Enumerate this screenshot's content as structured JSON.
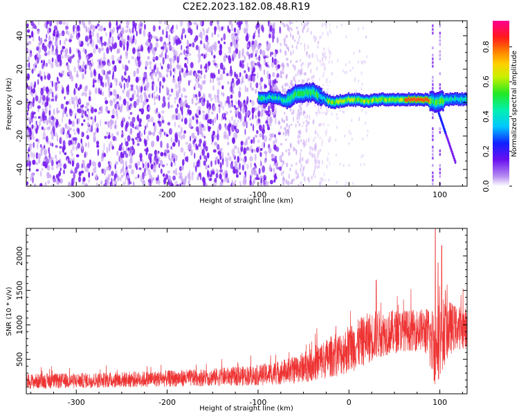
{
  "title": "C2E2.2023.182.08.48.R19",
  "colors": {
    "snr_line": "#ee3333",
    "spectrogram_noise": "#7a22ee",
    "axis": "#000000",
    "background": "#ffffff"
  },
  "chart_data": [
    {
      "type": "heatmap",
      "xlabel": "Height of straight line (km)",
      "ylabel": "Frequency (Hz)",
      "xlim": [
        -355,
        130
      ],
      "ylim": [
        -50,
        49
      ],
      "xticks": [
        "-300",
        "-200",
        "-100",
        "0",
        "100"
      ],
      "xtick_values": [
        -300,
        -200,
        -100,
        0,
        100
      ],
      "yticks": [
        "-40",
        "-20",
        "0",
        "20",
        "40"
      ],
      "ytick_values": [
        -40,
        -20,
        0,
        20,
        40
      ],
      "colorbar": {
        "label": "Normalized spectral amplitude",
        "range": [
          0,
          0.95
        ],
        "ticks": [
          "0.0",
          "0.2",
          "0.4",
          "0.6",
          "0.8"
        ],
        "tick_values": [
          0,
          0.2,
          0.4,
          0.6,
          0.8
        ],
        "colormap": "rainbow (white/violet at 0 through blue, cyan, green, yellow, orange, red to magenta at max)"
      },
      "noise_region": {
        "x_range": [
          -355,
          -75
        ],
        "amplitude": 0.12
      },
      "fading_noise_region": {
        "x_range": [
          -75,
          -20
        ]
      },
      "signal_band_center": [
        [
          -100,
          3
        ],
        [
          -80,
          3
        ],
        [
          -70,
          1
        ],
        [
          -60,
          5
        ],
        [
          -50,
          6
        ],
        [
          -40,
          6
        ],
        [
          -30,
          3
        ],
        [
          -20,
          0
        ],
        [
          -10,
          1
        ],
        [
          0,
          2
        ],
        [
          20,
          1
        ],
        [
          40,
          2
        ],
        [
          60,
          2
        ],
        [
          80,
          2
        ],
        [
          90,
          1
        ],
        [
          95,
          0
        ],
        [
          100,
          1
        ],
        [
          110,
          2
        ],
        [
          130,
          2
        ]
      ],
      "signal_peak_amplitude": 0.85,
      "signal_peak_x_range": [
        60,
        90
      ],
      "vertical_streaks_x": [
        92,
        100
      ],
      "diagonal_trail": [
        [
          95,
          0
        ],
        [
          118,
          -37
        ]
      ]
    },
    {
      "type": "line",
      "xlabel": "Height of straight line (km)",
      "ylabel": "SNR (10 * v/v)",
      "xlim": [
        -355,
        130
      ],
      "ylim": [
        0,
        2400
      ],
      "xticks": [
        "-300",
        "-200",
        "-100",
        "0",
        "100"
      ],
      "xtick_values": [
        -300,
        -200,
        -100,
        0,
        100
      ],
      "yticks": [
        "500",
        "1000",
        "1500",
        "2000"
      ],
      "ytick_values": [
        500,
        1000,
        1500,
        2000
      ],
      "series": [
        {
          "envelope_x": [
            -355,
            -300,
            -200,
            -150,
            -100,
            -80,
            -60,
            -40,
            -30,
            -20,
            -10,
            0,
            10,
            20,
            30,
            40,
            50,
            60,
            70,
            80,
            85,
            90,
            95,
            100,
            105,
            110,
            115,
            120,
            130
          ],
          "envelope_mean": [
            180,
            190,
            220,
            240,
            270,
            300,
            350,
            430,
            480,
            540,
            580,
            650,
            720,
            800,
            860,
            880,
            900,
            920,
            920,
            930,
            900,
            780,
            700,
            800,
            900,
            950,
            960,
            960,
            950
          ],
          "envelope_spread": [
            110,
            110,
            120,
            130,
            150,
            170,
            200,
            250,
            280,
            300,
            320,
            360,
            360,
            370,
            360,
            330,
            320,
            300,
            300,
            310,
            350,
            480,
            600,
            560,
            500,
            420,
            340,
            320,
            300
          ],
          "spikes": [
            [
              30,
              1650
            ],
            [
              95,
              2400
            ],
            [
              98,
              1900
            ],
            [
              102,
              2150
            ],
            [
              106,
              1500
            ]
          ]
        }
      ]
    }
  ]
}
